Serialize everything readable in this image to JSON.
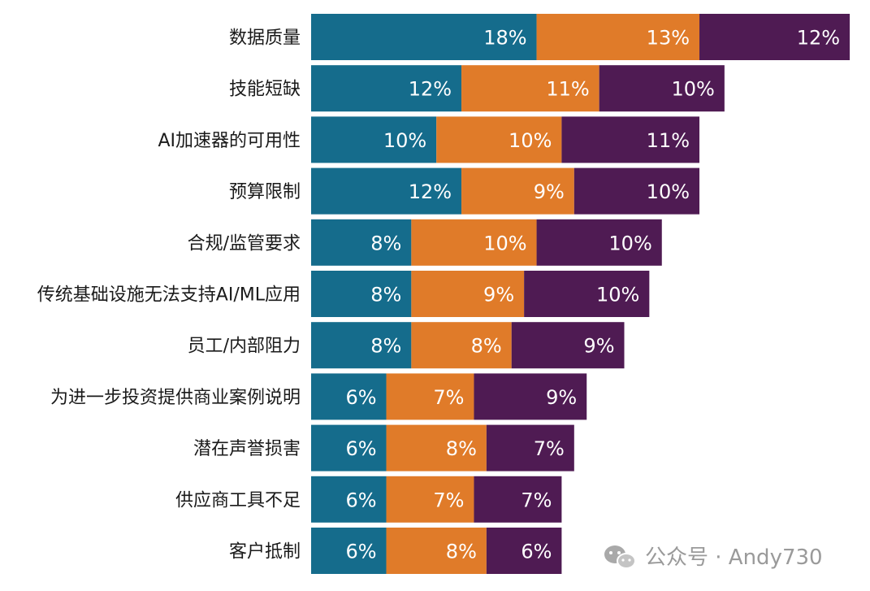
{
  "chart_data": {
    "type": "bar",
    "orientation": "horizontal",
    "stacked": true,
    "categories": [
      "数据质量",
      "技能短缺",
      "AI加速器的可用性",
      "预算限制",
      "合规/监管要求",
      "传统基础设施无法支持AI/ML应用",
      "员工/内部阻力",
      "为进一步投资提供商业案例说明",
      "潜在声誉损害",
      "供应商工具不足",
      "客户抵制"
    ],
    "series": [
      {
        "color": "#156c8c",
        "values": [
          18,
          12,
          10,
          12,
          8,
          8,
          8,
          6,
          6,
          6,
          6
        ]
      },
      {
        "color": "#e07b29",
        "values": [
          13,
          11,
          10,
          9,
          10,
          9,
          8,
          7,
          8,
          7,
          8
        ]
      },
      {
        "color": "#4f1b53",
        "values": [
          12,
          10,
          11,
          10,
          10,
          10,
          9,
          9,
          7,
          7,
          6
        ]
      }
    ],
    "value_suffix": "%",
    "legend": "none",
    "grid": false
  },
  "watermark": {
    "icon": "wechat-icon",
    "text": "公众号 · Andy730"
  }
}
